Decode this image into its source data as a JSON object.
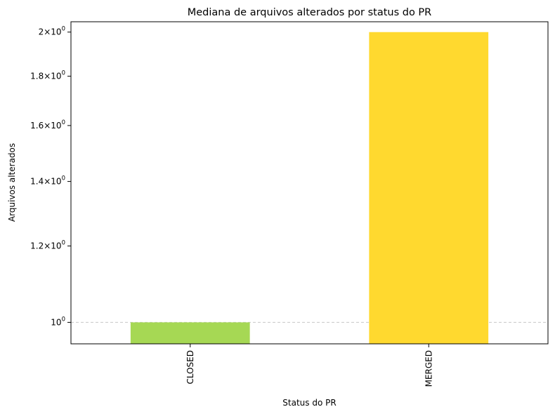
{
  "chart_data": {
    "type": "bar",
    "title": "Mediana de arquivos alterados por status do PR",
    "xlabel": "Status do PR",
    "ylabel": "Arquivos alterados",
    "yscale": "log",
    "ylim": [
      0.95,
      2.05
    ],
    "categories": [
      "CLOSED",
      "MERGED"
    ],
    "values": [
      1,
      2
    ],
    "colors": [
      "#a6d854",
      "#ffd92f"
    ],
    "yticks": [
      {
        "value": 1.0,
        "coef": "",
        "exp": "0"
      },
      {
        "value": 1.2,
        "coef": "1.2",
        "exp": "0"
      },
      {
        "value": 1.4,
        "coef": "1.4",
        "exp": "0"
      },
      {
        "value": 1.6,
        "coef": "1.6",
        "exp": "0"
      },
      {
        "value": 1.8,
        "coef": "1.8",
        "exp": "0"
      },
      {
        "value": 2.0,
        "coef": "2",
        "exp": "0"
      }
    ],
    "reference_line": 1,
    "grid": "y-dashed-at-reference"
  }
}
